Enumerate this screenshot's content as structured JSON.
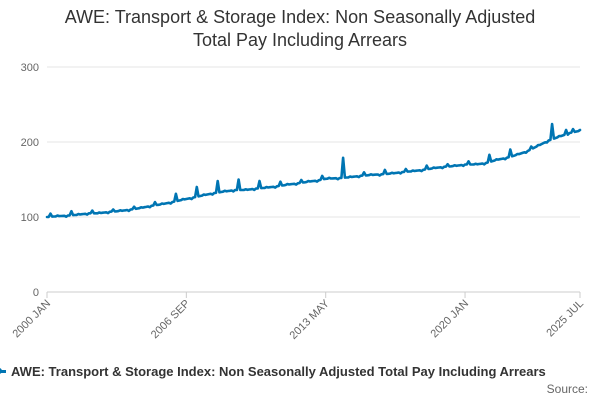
{
  "title_line1": "AWE: Transport & Storage Index: Non Seasonally Adjusted",
  "title_line2": "Total Pay Including Arrears",
  "source_label": "Source:",
  "series_color": "#0075b3",
  "chart_data": {
    "type": "line",
    "ylim": [
      0,
      300
    ],
    "y_ticks": [
      0,
      100,
      200,
      300
    ],
    "x_range": [
      "2000 JAN",
      "2025 JUL"
    ],
    "x_ticks": [
      "2000 JAN",
      "2006 SEP",
      "2013 MAY",
      "2020 JAN",
      "2025 JUL"
    ],
    "grid": "horizontal",
    "legend": "bottom",
    "series": [
      {
        "name": "AWE: Transport & Storage Index: Non Seasonally Adjusted Total Pay Including Arrears",
        "points": [
          [
            "2000 JAN",
            100
          ],
          [
            "2000 JUL",
            101
          ],
          [
            "2001 JAN",
            102
          ],
          [
            "2001 JUL",
            103
          ],
          [
            "2002 JAN",
            105
          ],
          [
            "2002 JUL",
            105
          ],
          [
            "2003 JAN",
            107
          ],
          [
            "2003 JUL",
            108
          ],
          [
            "2004 JAN",
            110
          ],
          [
            "2004 JUL",
            112
          ],
          [
            "2005 JAN",
            115
          ],
          [
            "2005 JUL",
            117
          ],
          [
            "2006 JAN",
            120
          ],
          [
            "2006 SEP",
            124
          ],
          [
            "2007 JAN",
            126
          ],
          [
            "2007 JUL",
            129
          ],
          [
            "2008 JAN",
            132
          ],
          [
            "2008 JUL",
            134
          ],
          [
            "2009 JAN",
            136
          ],
          [
            "2009 JUL",
            136
          ],
          [
            "2010 JAN",
            138
          ],
          [
            "2010 JUL",
            139
          ],
          [
            "2011 JAN",
            141
          ],
          [
            "2011 JUL",
            143
          ],
          [
            "2012 JAN",
            145
          ],
          [
            "2012 JUL",
            147
          ],
          [
            "2013 JAN",
            149
          ],
          [
            "2013 MAY",
            151
          ],
          [
            "2014 JAN",
            152
          ],
          [
            "2014 JUL",
            153
          ],
          [
            "2015 JAN",
            155
          ],
          [
            "2015 JUL",
            156
          ],
          [
            "2016 JAN",
            157
          ],
          [
            "2016 JUL",
            158
          ],
          [
            "2017 JAN",
            160
          ],
          [
            "2017 JUL",
            161
          ],
          [
            "2018 JAN",
            163
          ],
          [
            "2018 JUL",
            165
          ],
          [
            "2019 JAN",
            167
          ],
          [
            "2019 JUL",
            168
          ],
          [
            "2020 JAN",
            170
          ],
          [
            "2020 JUL",
            170
          ],
          [
            "2021 JAN",
            172
          ],
          [
            "2021 JUL",
            176
          ],
          [
            "2022 JAN",
            179
          ],
          [
            "2022 JUL",
            183
          ],
          [
            "2023 JAN",
            188
          ],
          [
            "2023 JUL",
            195
          ],
          [
            "2024 JAN",
            202
          ],
          [
            "2024 JUL",
            207
          ],
          [
            "2025 JAN",
            212
          ],
          [
            "2025 JUL",
            215
          ]
        ],
        "spikes": [
          [
            "2003 MAR",
            110
          ],
          [
            "2006 MAR",
            131
          ],
          [
            "2007 MAR",
            140
          ],
          [
            "2008 MAR",
            148
          ],
          [
            "2009 MAR",
            150
          ],
          [
            "2010 MAR",
            148
          ],
          [
            "2014 MAR",
            179
          ],
          [
            "2021 MAR",
            183
          ],
          [
            "2022 MAR",
            190
          ],
          [
            "2023 MAR",
            194
          ],
          [
            "2024 MAR",
            224
          ],
          [
            "2024 NOV",
            216
          ]
        ]
      }
    ]
  }
}
